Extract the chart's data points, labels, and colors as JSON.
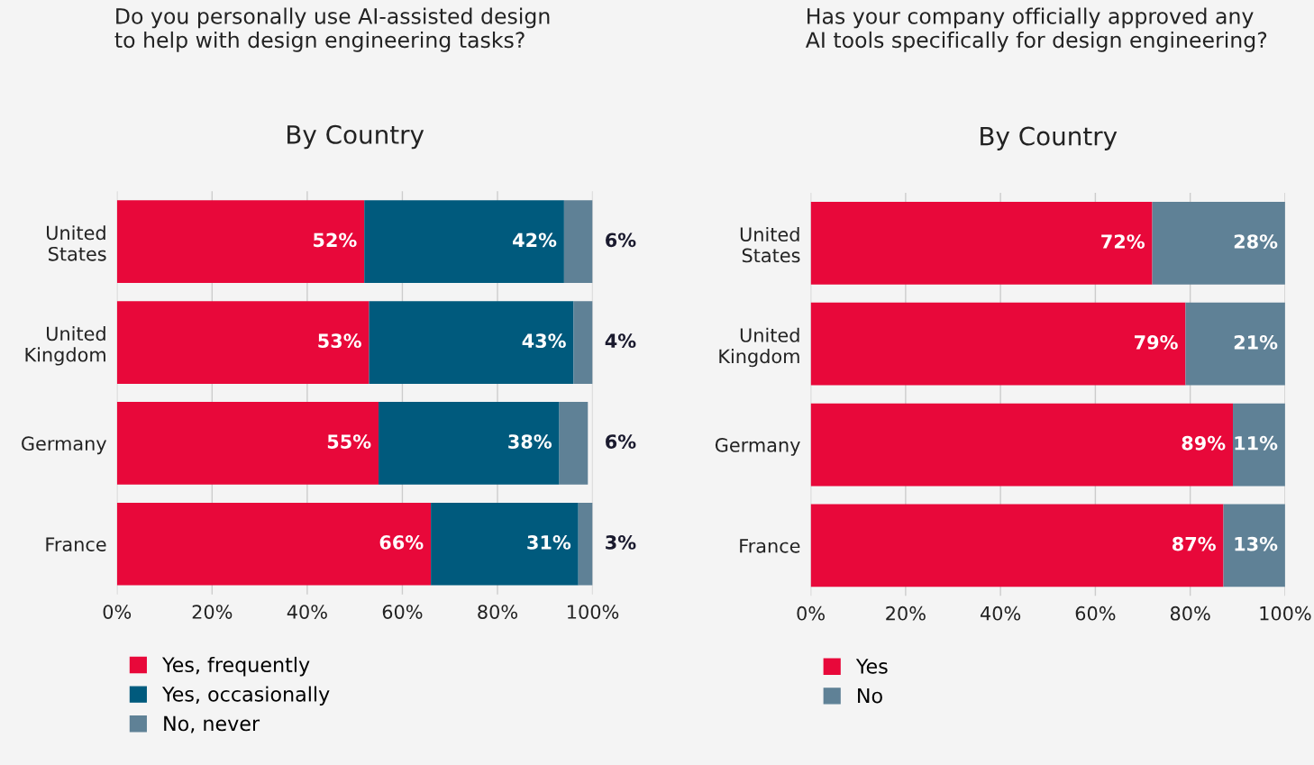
{
  "chart_data": [
    {
      "type": "bar",
      "orientation": "horizontal",
      "stacked": true,
      "title": "Do you personally use AI-assisted design\nto help with design engineering tasks?",
      "subtitle": "By Country",
      "categories": [
        "United\nStates",
        "United\nKingdom",
        "Germany",
        "France"
      ],
      "series": [
        {
          "name": "Yes, frequently",
          "color": "#e8083a",
          "values": [
            52,
            53,
            55,
            66
          ],
          "value_labels": [
            "52%",
            "53%",
            "55%",
            "66%"
          ]
        },
        {
          "name": "Yes, occasionally",
          "color": "#005a7d",
          "values": [
            42,
            43,
            38,
            31
          ],
          "value_labels": [
            "42%",
            "43%",
            "38%",
            "31%"
          ]
        },
        {
          "name": "No, never",
          "color": "#5f8196",
          "values": [
            6,
            4,
            6,
            3
          ],
          "value_labels": [
            "6%",
            "4%",
            "6%",
            "3%"
          ]
        }
      ],
      "xlim": [
        0,
        100
      ],
      "xticks": [
        {
          "value": 0,
          "label": "0%"
        },
        {
          "value": 20,
          "label": "20%"
        },
        {
          "value": 40,
          "label": "40%"
        },
        {
          "value": 60,
          "label": "60%"
        },
        {
          "value": 80,
          "label": "80%"
        },
        {
          "value": 100,
          "label": "100%"
        }
      ],
      "grid": "x",
      "legend": "bottom left"
    },
    {
      "type": "bar",
      "orientation": "horizontal",
      "stacked": true,
      "title": "Has your company officially approved any\nAI tools specifically for design engineering?",
      "subtitle": "By Country",
      "categories": [
        "United\nStates",
        "United\nKingdom",
        "Germany",
        "France"
      ],
      "series": [
        {
          "name": "Yes",
          "color": "#e8083a",
          "values": [
            72,
            79,
            89,
            87
          ],
          "value_labels": [
            "72%",
            "79%",
            "89%",
            "87%"
          ]
        },
        {
          "name": "No",
          "color": "#5f8196",
          "values": [
            28,
            21,
            11,
            13
          ],
          "value_labels": [
            "28%",
            "21%",
            "11%",
            "13%"
          ]
        }
      ],
      "xlim": [
        0,
        100
      ],
      "xticks": [
        {
          "value": 0,
          "label": "0%"
        },
        {
          "value": 20,
          "label": "20%"
        },
        {
          "value": 40,
          "label": "40%"
        },
        {
          "value": 60,
          "label": "60%"
        },
        {
          "value": 80,
          "label": "80%"
        },
        {
          "value": 100,
          "label": "100%"
        }
      ],
      "grid": "x",
      "legend": "bottom left"
    }
  ]
}
